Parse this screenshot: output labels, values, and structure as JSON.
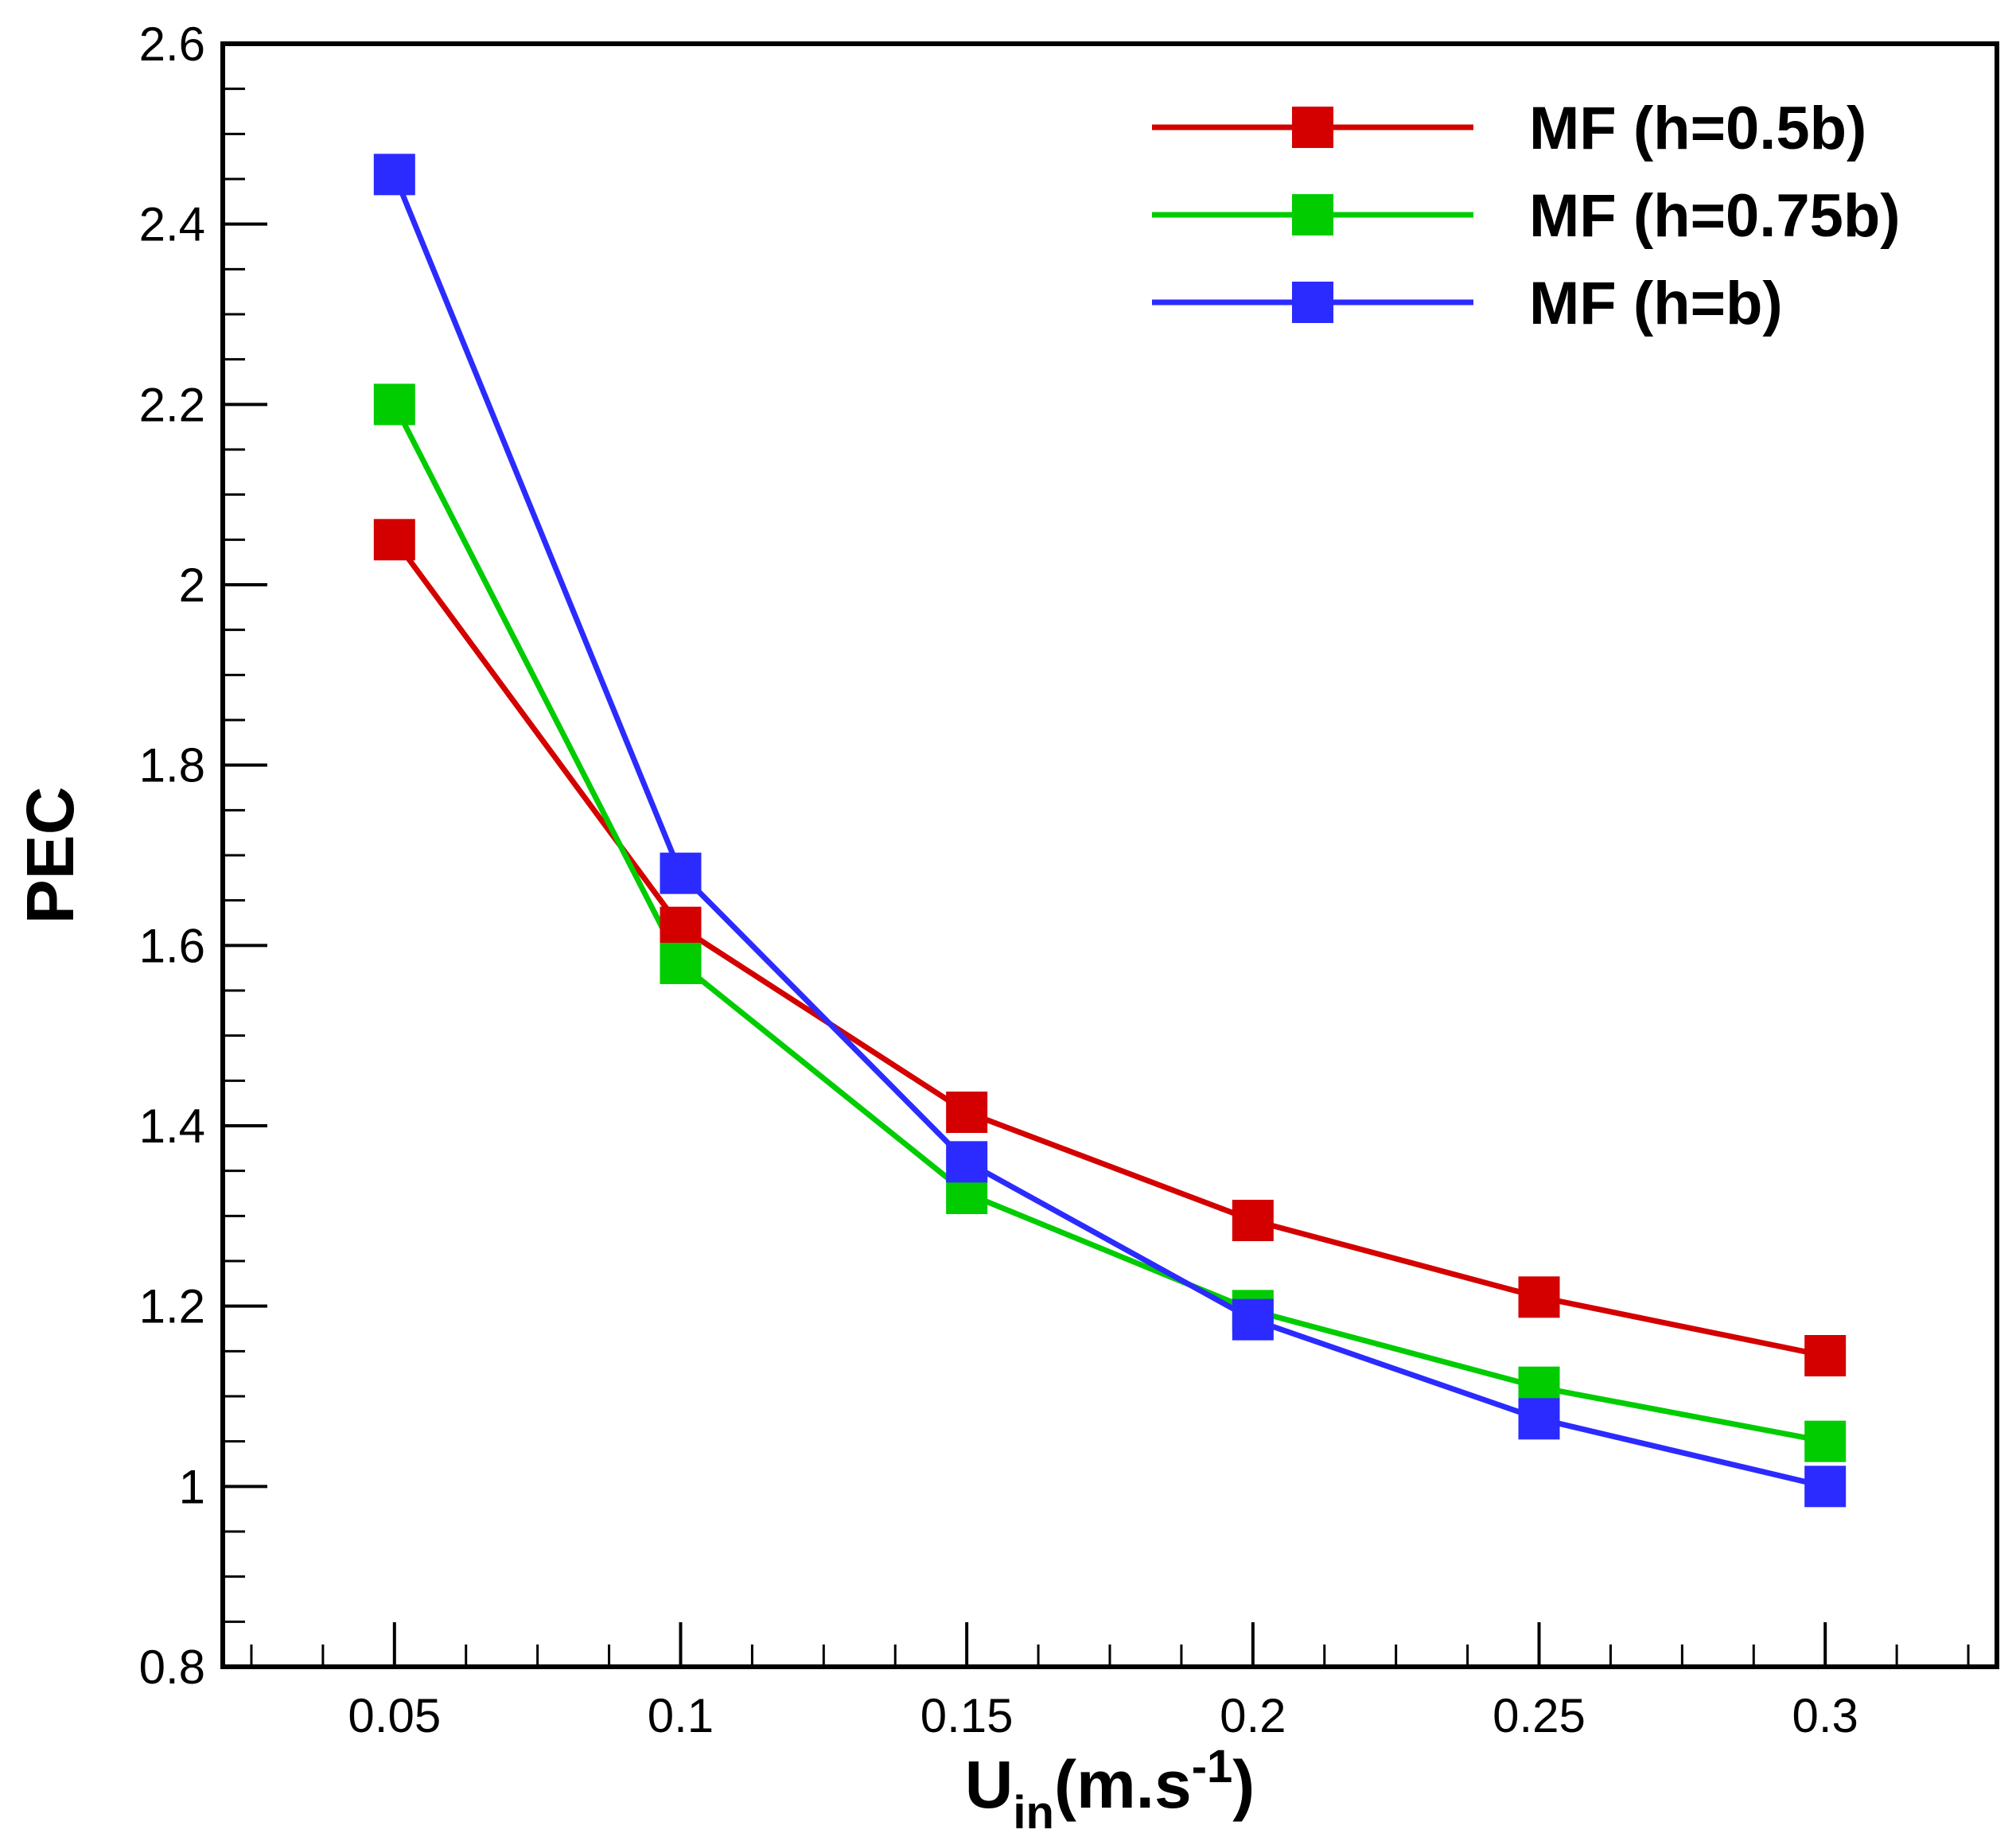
{
  "chart_data": {
    "type": "line",
    "title": "",
    "xlabel": {
      "main": "U",
      "sub": "in",
      "unit_open": "(m.s",
      "sup": "-1",
      "unit_close": ")"
    },
    "ylabel": "PEC",
    "x": [
      0.05,
      0.1,
      0.15,
      0.2,
      0.25,
      0.3
    ],
    "x_tick_labels": [
      "0.05",
      "0.1",
      "0.15",
      "0.2",
      "0.25",
      "0.3"
    ],
    "y_tick_values": [
      0.8,
      1,
      1.2,
      1.4,
      1.6,
      1.8,
      2,
      2.2,
      2.4,
      2.6
    ],
    "y_tick_labels": [
      "0.8",
      "1",
      "1.2",
      "1.4",
      "1.6",
      "1.8",
      "2",
      "2.2",
      "2.4",
      "2.6"
    ],
    "xlim": [
      0.02,
      0.33
    ],
    "ylim": [
      0.8,
      2.6
    ],
    "x_minor_step": 0.0125,
    "y_minor_step": 0.05,
    "grid": false,
    "legend_position": "top-right",
    "series": [
      {
        "name": "MF (h=0.5b)",
        "color": "#d40000",
        "values": [
          2.05,
          1.62,
          1.415,
          1.295,
          1.21,
          1.145
        ]
      },
      {
        "name": "MF (h=0.75b)",
        "color": "#00cc00",
        "values": [
          2.2,
          1.58,
          1.325,
          1.195,
          1.11,
          1.05
        ]
      },
      {
        "name": "MF (h=b)",
        "color": "#2b2bff",
        "values": [
          2.455,
          1.68,
          1.36,
          1.185,
          1.075,
          1.0
        ]
      }
    ]
  }
}
